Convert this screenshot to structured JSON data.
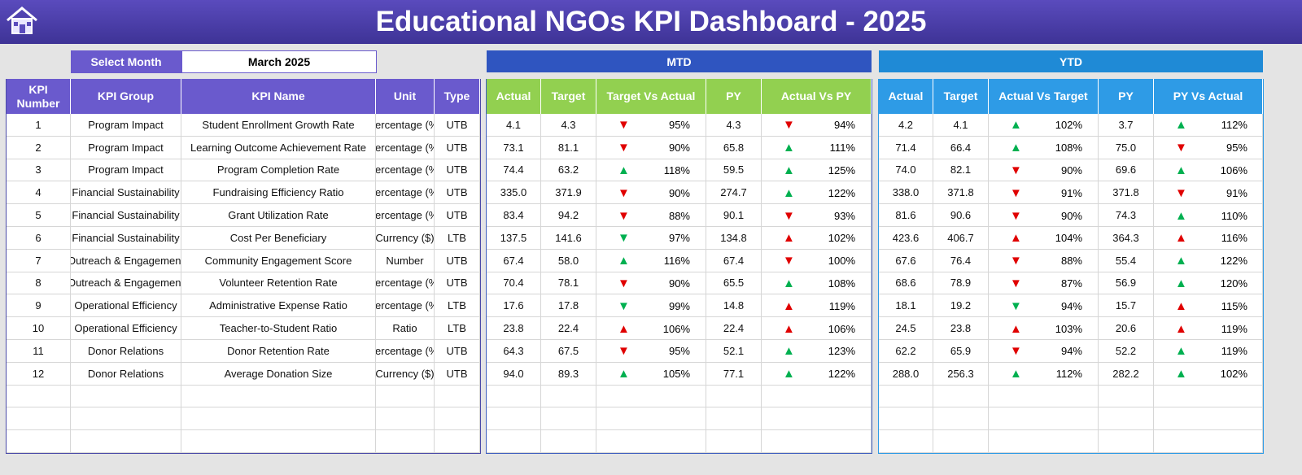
{
  "header": {
    "title": "Educational NGOs KPI Dashboard - 2025"
  },
  "filter": {
    "label": "Select Month",
    "value": "March 2025"
  },
  "sections": {
    "mtd": "MTD",
    "ytd": "YTD"
  },
  "kpi_table": {
    "columns": [
      "KPI Number",
      "KPI Group",
      "KPI Name",
      "Unit",
      "Type"
    ],
    "rows": [
      [
        "1",
        "Program Impact",
        "Student Enrollment Growth Rate",
        "Percentage (%)",
        "UTB"
      ],
      [
        "2",
        "Program Impact",
        "Learning Outcome Achievement Rate",
        "Percentage (%)",
        "UTB"
      ],
      [
        "3",
        "Program Impact",
        "Program Completion Rate",
        "Percentage (%)",
        "UTB"
      ],
      [
        "4",
        "Financial Sustainability",
        "Fundraising Efficiency Ratio",
        "Percentage (%)",
        "UTB"
      ],
      [
        "5",
        "Financial Sustainability",
        "Grant Utilization Rate",
        "Percentage (%)",
        "UTB"
      ],
      [
        "6",
        "Financial Sustainability",
        "Cost Per Beneficiary",
        "Currency ($)",
        "LTB"
      ],
      [
        "7",
        "Outreach & Engagement",
        "Community Engagement Score",
        "Number",
        "UTB"
      ],
      [
        "8",
        "Outreach & Engagement",
        "Volunteer Retention Rate",
        "Percentage (%)",
        "UTB"
      ],
      [
        "9",
        "Operational Efficiency",
        "Administrative Expense Ratio",
        "Percentage (%)",
        "LTB"
      ],
      [
        "10",
        "Operational Efficiency",
        "Teacher-to-Student Ratio",
        "Ratio",
        "LTB"
      ],
      [
        "11",
        "Donor Relations",
        "Donor Retention Rate",
        "Percentage (%)",
        "UTB"
      ],
      [
        "12",
        "Donor Relations",
        "Average Donation Size",
        "Currency ($)",
        "UTB"
      ]
    ]
  },
  "mtd_table": {
    "columns": [
      "Actual",
      "Target",
      "Target Vs Actual",
      "PY",
      "Actual Vs PY"
    ],
    "rows": [
      [
        "4.1",
        "4.3",
        [
          "▼",
          "95%"
        ],
        "4.3",
        [
          "▼",
          "94%"
        ]
      ],
      [
        "73.1",
        "81.1",
        [
          "▼",
          "90%"
        ],
        "65.8",
        [
          "▲",
          "111%"
        ]
      ],
      [
        "74.4",
        "63.2",
        [
          "▲",
          "118%"
        ],
        "59.5",
        [
          "▲",
          "125%"
        ]
      ],
      [
        "335.0",
        "371.9",
        [
          "▼",
          "90%"
        ],
        "274.7",
        [
          "▲",
          "122%"
        ]
      ],
      [
        "83.4",
        "94.2",
        [
          "▼",
          "88%"
        ],
        "90.1",
        [
          "▼",
          "93%"
        ]
      ],
      [
        "137.5",
        "141.6",
        [
          "▼",
          "97%"
        ],
        "134.8",
        [
          "▲",
          "102%"
        ]
      ],
      [
        "67.4",
        "58.0",
        [
          "▲",
          "116%"
        ],
        "67.4",
        [
          "▼",
          "100%"
        ]
      ],
      [
        "70.4",
        "78.1",
        [
          "▼",
          "90%"
        ],
        "65.5",
        [
          "▲",
          "108%"
        ]
      ],
      [
        "17.6",
        "17.8",
        [
          "▼",
          "99%"
        ],
        "14.8",
        [
          "▲",
          "119%"
        ]
      ],
      [
        "23.8",
        "22.4",
        [
          "▲",
          "106%"
        ],
        "22.4",
        [
          "▲",
          "106%"
        ]
      ],
      [
        "64.3",
        "67.5",
        [
          "▼",
          "95%"
        ],
        "52.1",
        [
          "▲",
          "123%"
        ]
      ],
      [
        "94.0",
        "89.3",
        [
          "▲",
          "105%"
        ],
        "77.1",
        [
          "▲",
          "122%"
        ]
      ]
    ]
  },
  "ytd_table": {
    "columns": [
      "Actual",
      "Target",
      "Actual Vs Target",
      "PY",
      "PY Vs Actual"
    ],
    "rows": [
      [
        "4.2",
        "4.1",
        [
          "▲",
          "102%"
        ],
        "3.7",
        [
          "▲",
          "112%"
        ]
      ],
      [
        "71.4",
        "66.4",
        [
          "▲",
          "108%"
        ],
        "75.0",
        [
          "▼",
          "95%"
        ]
      ],
      [
        "74.0",
        "82.1",
        [
          "▼",
          "90%"
        ],
        "69.6",
        [
          "▲",
          "106%"
        ]
      ],
      [
        "338.0",
        "371.8",
        [
          "▼",
          "91%"
        ],
        "371.8",
        [
          "▼",
          "91%"
        ]
      ],
      [
        "81.6",
        "90.6",
        [
          "▼",
          "90%"
        ],
        "74.3",
        [
          "▲",
          "110%"
        ]
      ],
      [
        "423.6",
        "406.7",
        [
          "▲",
          "104%"
        ],
        "364.3",
        [
          "▲",
          "116%"
        ]
      ],
      [
        "67.6",
        "76.4",
        [
          "▼",
          "88%"
        ],
        "55.4",
        [
          "▲",
          "122%"
        ]
      ],
      [
        "68.6",
        "78.9",
        [
          "▼",
          "87%"
        ],
        "56.9",
        [
          "▲",
          "120%"
        ]
      ],
      [
        "18.1",
        "19.2",
        [
          "▼",
          "94%"
        ],
        "15.7",
        [
          "▲",
          "115%"
        ]
      ],
      [
        "24.5",
        "23.8",
        [
          "▲",
          "103%"
        ],
        "20.6",
        [
          "▲",
          "119%"
        ]
      ],
      [
        "62.2",
        "65.9",
        [
          "▼",
          "94%"
        ],
        "52.2",
        [
          "▲",
          "119%"
        ]
      ],
      [
        "288.0",
        "256.3",
        [
          "▲",
          "112%"
        ],
        "282.2",
        [
          "▲",
          "102%"
        ]
      ]
    ]
  }
}
